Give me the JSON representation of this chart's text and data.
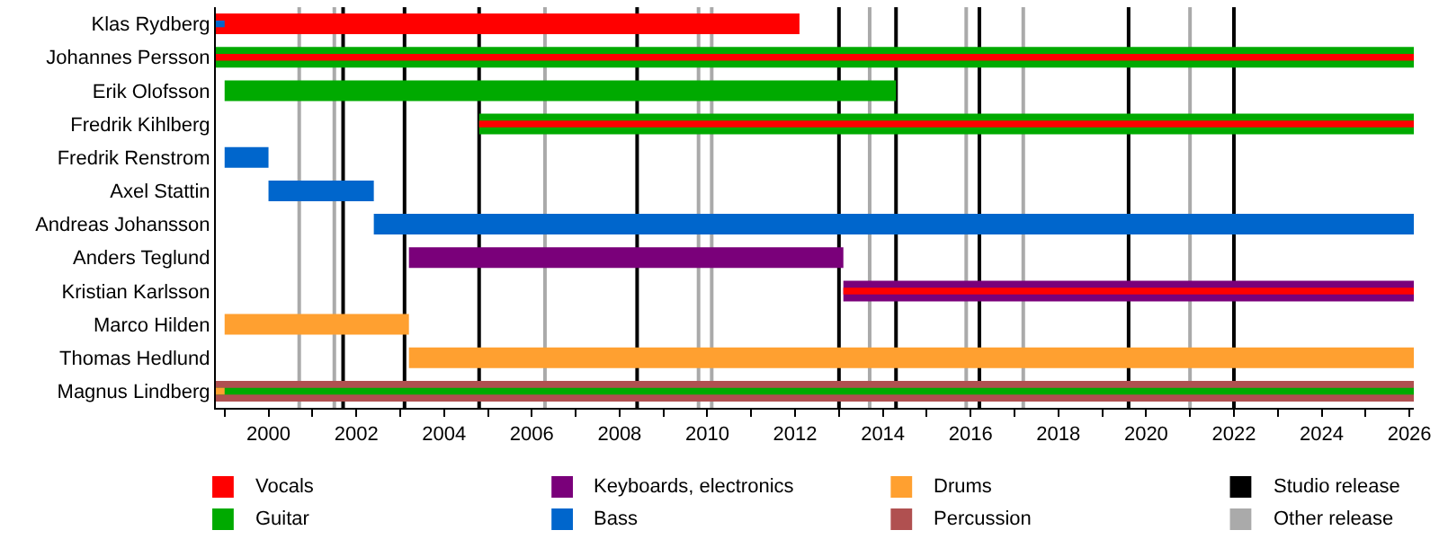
{
  "chart_data": {
    "type": "bar",
    "orientation": "horizontal",
    "legend": "bottom",
    "categories": [
      "Klas Rydberg",
      "Johannes Persson",
      "Erik Olofsson",
      "Fredrik Kihlberg",
      "Fredrik Renstrom",
      "Axel Stattin",
      "Andreas Johansson",
      "Anders Teglund",
      "Kristian Karlsson",
      "Marco Hilden",
      "Thomas Hedlund",
      "Magnus Lindberg"
    ],
    "series": [
      {
        "name": "Vocals",
        "color": "#ff0000",
        "base": [
          1998.8,
          1998.8,
          null,
          2004.8,
          null,
          null,
          null,
          null,
          2013.1,
          null,
          null,
          null
        ],
        "values": [
          13.3,
          27.3,
          null,
          21.3,
          null,
          null,
          null,
          null,
          13.0,
          null,
          null,
          null
        ]
      },
      {
        "name": "Guitar",
        "color": "#00aa00",
        "base": [
          null,
          1998.8,
          1999.0,
          2004.8,
          null,
          null,
          null,
          null,
          null,
          null,
          null,
          1998.8
        ],
        "values": [
          null,
          27.3,
          15.3,
          21.3,
          null,
          null,
          null,
          null,
          null,
          null,
          null,
          27.3
        ]
      },
      {
        "name": "Keyboards, electronics",
        "color": "#7a007a",
        "base": [
          null,
          null,
          null,
          null,
          null,
          null,
          null,
          2003.2,
          2013.1,
          null,
          null,
          null
        ],
        "values": [
          null,
          null,
          null,
          null,
          null,
          null,
          null,
          9.9,
          13.0,
          null,
          null,
          null
        ]
      },
      {
        "name": "Bass",
        "color": "#0066cc",
        "base": [
          1998.8,
          null,
          null,
          null,
          1999.0,
          2000.0,
          2002.4,
          null,
          null,
          null,
          null,
          null
        ],
        "values": [
          0.2,
          null,
          null,
          null,
          1.0,
          2.4,
          23.7,
          null,
          null,
          null,
          null,
          null
        ]
      },
      {
        "name": "Drums",
        "color": "#ffa030",
        "base": [
          null,
          null,
          null,
          null,
          null,
          null,
          null,
          null,
          null,
          1999.0,
          2003.2,
          1998.8
        ],
        "values": [
          null,
          null,
          null,
          null,
          null,
          null,
          null,
          null,
          null,
          4.2,
          22.9,
          0.2
        ]
      },
      {
        "name": "Percussion",
        "color": "#b05050",
        "base": [
          null,
          null,
          null,
          null,
          null,
          null,
          null,
          null,
          null,
          null,
          null,
          1998.8
        ],
        "values": [
          null,
          null,
          null,
          null,
          null,
          null,
          null,
          null,
          null,
          null,
          null,
          27.3
        ]
      }
    ],
    "ref_lines": [
      {
        "axis": "x",
        "value": 2001.7,
        "color": "#000000"
      },
      {
        "axis": "x",
        "value": 2003.1,
        "color": "#000000"
      },
      {
        "axis": "x",
        "value": 2004.8,
        "color": "#000000"
      },
      {
        "axis": "x",
        "value": 2008.4,
        "color": "#000000"
      },
      {
        "axis": "x",
        "value": 2013.0,
        "color": "#000000"
      },
      {
        "axis": "x",
        "value": 2014.3,
        "color": "#000000"
      },
      {
        "axis": "x",
        "value": 2016.2,
        "color": "#000000"
      },
      {
        "axis": "x",
        "value": 2019.6,
        "color": "#000000"
      },
      {
        "axis": "x",
        "value": 2022.0,
        "color": "#000000"
      },
      {
        "axis": "x",
        "value": 2000.7,
        "color": "#aaaaaa"
      },
      {
        "axis": "x",
        "value": 2001.5,
        "color": "#aaaaaa"
      },
      {
        "axis": "x",
        "value": 2006.3,
        "color": "#aaaaaa"
      },
      {
        "axis": "x",
        "value": 2009.8,
        "color": "#aaaaaa"
      },
      {
        "axis": "x",
        "value": 2010.1,
        "color": "#aaaaaa"
      },
      {
        "axis": "x",
        "value": 2013.7,
        "color": "#aaaaaa"
      },
      {
        "axis": "x",
        "value": 2015.9,
        "color": "#aaaaaa"
      },
      {
        "axis": "x",
        "value": 2017.2,
        "color": "#aaaaaa"
      },
      {
        "axis": "x",
        "value": 2021.0,
        "color": "#aaaaaa"
      }
    ],
    "annotations": [
      "Studio release",
      "Other release"
    ],
    "xlim": [
      1998.8,
      2026.1
    ],
    "xticks": [
      {
        "value": 1999,
        "label": null
      },
      2000,
      {
        "value": 2001,
        "label": null
      },
      2002,
      {
        "value": 2003,
        "label": null
      },
      2004,
      {
        "value": 2005,
        "label": null
      },
      2006,
      {
        "value": 2007,
        "label": null
      },
      2008,
      {
        "value": 2009,
        "label": null
      },
      2010,
      {
        "value": 2011,
        "label": null
      },
      2012,
      {
        "value": 2013,
        "label": null
      },
      2014,
      {
        "value": 2015,
        "label": null
      },
      2016,
      {
        "value": 2017,
        "label": null
      },
      2018,
      {
        "value": 2019,
        "label": null
      },
      2020,
      {
        "value": 2021,
        "label": null
      },
      2022,
      {
        "value": 2023,
        "label": null
      },
      2024,
      {
        "value": 2025,
        "label": null
      },
      2026
    ]
  }
}
